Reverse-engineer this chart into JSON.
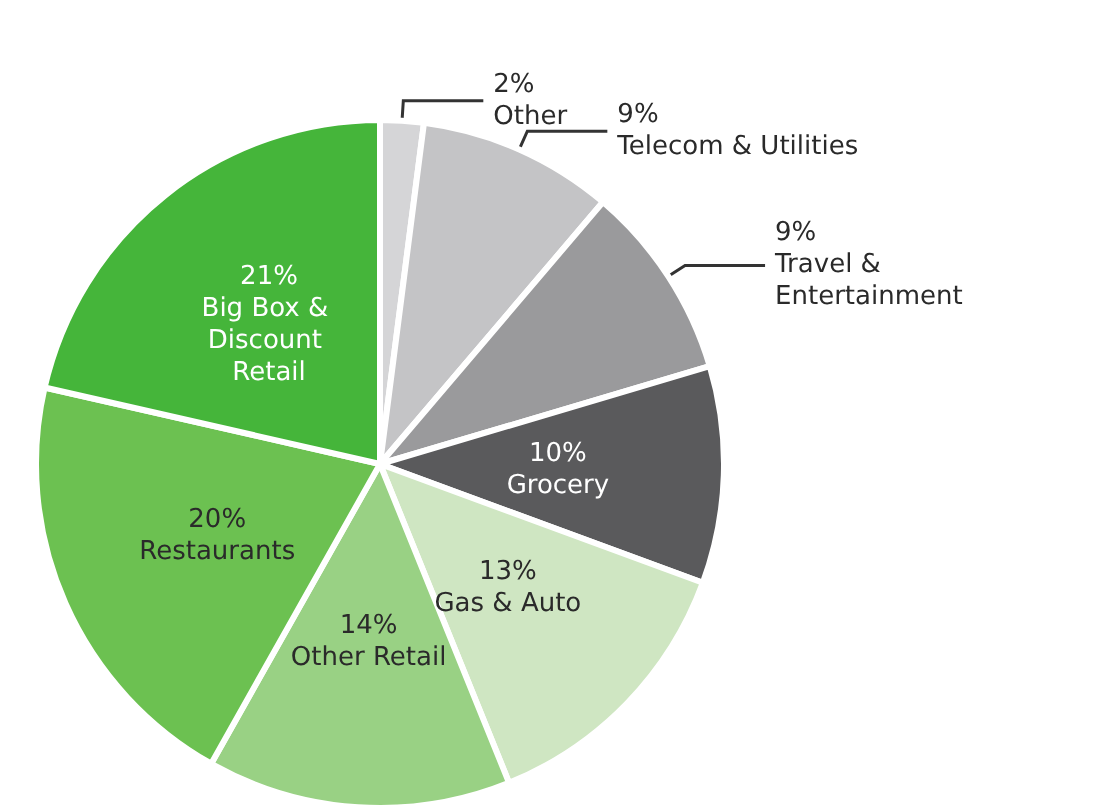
{
  "chart_data": {
    "type": "pie",
    "categories": [
      "Other",
      "Telecom & Utilities",
      "Travel & Entertainment",
      "Grocery",
      "Gas & Auto",
      "Other Retail",
      "Restaurants",
      "Big Box & Discount Retail"
    ],
    "values": [
      2,
      9,
      9,
      10,
      13,
      14,
      20,
      21
    ],
    "value_labels": [
      "2%",
      "9%",
      "9%",
      "10%",
      "13%",
      "14%",
      "20%",
      "21%"
    ],
    "colors": [
      "#d5d5d7",
      "#c4c4c6",
      "#9a9a9c",
      "#5a5a5c",
      "#cfe6c2",
      "#99d184",
      "#6cc151",
      "#45b53a"
    ]
  }
}
